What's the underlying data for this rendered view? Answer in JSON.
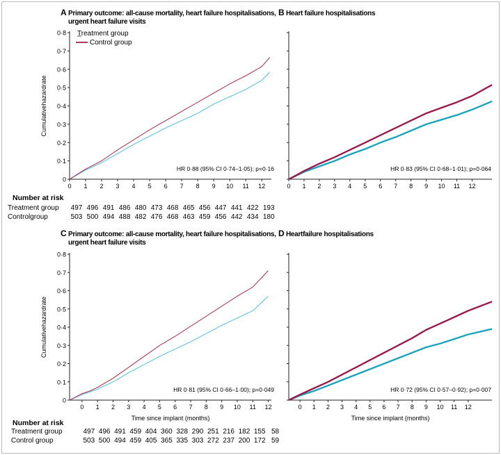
{
  "colors": {
    "treatment": "#5cc3df",
    "control": "#a83a58",
    "treatment_dark": "#1aa3bd",
    "control_dark": "#9a1a4c",
    "border": "#bcbcbc",
    "axis": "#222222"
  },
  "number_at_risk": [
    {
      "title": "Number at risk",
      "rows": [
        {
          "label": "Treatment group",
          "values": [
            "497",
            "496",
            "491",
            "486",
            "480",
            "473",
            "468",
            "465",
            "456",
            "447",
            "441",
            "422",
            "193"
          ]
        },
        {
          "label": "Controlgroup",
          "values": [
            "503",
            "500",
            "494",
            "488",
            "482",
            "476",
            "468",
            "463",
            "459",
            "456",
            "442",
            "434",
            "180"
          ]
        }
      ]
    },
    {
      "title": "Number at risk",
      "rows": [
        {
          "label": "Treatment group",
          "values": [
            "497",
            "496",
            "491",
            "459",
            "404",
            "360",
            "328",
            "290",
            "251",
            "216",
            "182",
            "155",
            "58"
          ]
        },
        {
          "label": "Control group",
          "values": [
            "503",
            "500",
            "494",
            "459",
            "405",
            "365",
            "335",
            "303",
            "272",
            "237",
            "200",
            "172",
            "59"
          ]
        }
      ]
    }
  ],
  "chart_data": [
    {
      "type": "line",
      "panel": "A",
      "title": "Primary outcome: all-cause mortality, heart failure hospitalisations, urgent heart failure visits",
      "xlabel": "",
      "ylabel": "Cumulativehazardrate",
      "xlim": [
        0,
        12.6
      ],
      "ylim": [
        0,
        0.8
      ],
      "xticks": [
        "0",
        "1",
        "2",
        "3",
        "4",
        "5",
        "6",
        "7",
        "8",
        "9",
        "10",
        "11",
        "12"
      ],
      "yticks": [
        "0",
        "0·1",
        "0·2",
        "0·3",
        "0·4",
        "0·5",
        "0·6",
        "0·7",
        "0·8"
      ],
      "annotation": "HR 0·88 (95% CI 0·74–1·05); p=0·16",
      "legend": [
        "Treatment group",
        "Control group"
      ],
      "grid": false,
      "series": [
        {
          "name": "Treatment group",
          "x": [
            0,
            0.5,
            1,
            2,
            3,
            4,
            5,
            6,
            7,
            8,
            9,
            10,
            11,
            12,
            12.5
          ],
          "y": [
            0,
            0.025,
            0.05,
            0.09,
            0.14,
            0.19,
            0.235,
            0.28,
            0.32,
            0.36,
            0.41,
            0.45,
            0.49,
            0.54,
            0.585
          ]
        },
        {
          "name": "Control group",
          "x": [
            0,
            0.5,
            1,
            2,
            3,
            4,
            5,
            6,
            7,
            8,
            9,
            10,
            11,
            12,
            12.5
          ],
          "y": [
            0,
            0.028,
            0.055,
            0.1,
            0.16,
            0.215,
            0.27,
            0.32,
            0.37,
            0.42,
            0.47,
            0.52,
            0.565,
            0.615,
            0.665
          ]
        }
      ]
    },
    {
      "type": "line",
      "panel": "B",
      "title": "Heart failure hospitalisations",
      "xlabel": "",
      "ylabel": "",
      "xlim": [
        0,
        13.3
      ],
      "ylim": [
        0,
        0.8
      ],
      "xticks": [
        "0",
        "1",
        "2",
        "3",
        "4",
        "5",
        "6",
        "7",
        "8",
        "9",
        "10",
        "11",
        "12"
      ],
      "annotation": "HR 0·83 (95% CI 0·68–1·01); p=0·064",
      "grid": false,
      "series": [
        {
          "name": "Treatment group",
          "x": [
            0,
            0.5,
            1,
            2,
            3,
            4,
            5,
            6,
            7,
            8,
            9,
            10,
            11,
            12,
            13.3
          ],
          "y": [
            0,
            0.02,
            0.04,
            0.07,
            0.1,
            0.135,
            0.165,
            0.2,
            0.23,
            0.265,
            0.3,
            0.325,
            0.35,
            0.38,
            0.425
          ]
        },
        {
          "name": "Control group",
          "x": [
            0,
            0.5,
            1,
            2,
            3,
            4,
            5,
            6,
            7,
            8,
            9,
            10,
            11,
            12,
            13.3
          ],
          "y": [
            0,
            0.022,
            0.045,
            0.085,
            0.12,
            0.16,
            0.2,
            0.24,
            0.28,
            0.32,
            0.36,
            0.39,
            0.42,
            0.455,
            0.515
          ]
        }
      ]
    },
    {
      "type": "line",
      "panel": "C",
      "title": "Primary outcome: all-cause mortality, heart failure hospitalisations, urgent heart failure visits",
      "xlabel": "Time since implant (months)",
      "ylabel": "Cumulativehazardrate",
      "xlim": [
        -0.8,
        12.2
      ],
      "ylim": [
        0,
        0.8
      ],
      "xticks": [
        "0",
        "1",
        "2",
        "3",
        "4",
        "5",
        "6",
        "7",
        "8",
        "9",
        "10",
        "11",
        "12"
      ],
      "yticks": [
        "0",
        "0·1",
        "0·2",
        "0·3",
        "0·4",
        "0·5",
        "0·6",
        "0·7",
        "0·8"
      ],
      "annotation": "HR 0·81 (95% CI 0·66–1·00); p=0·049",
      "grid": false,
      "series": [
        {
          "name": "Treatment group",
          "x": [
            -0.8,
            0,
            0.5,
            1,
            2,
            3,
            4,
            5,
            6,
            7,
            8,
            9,
            10,
            11,
            12
          ],
          "y": [
            0,
            0.03,
            0.045,
            0.06,
            0.1,
            0.15,
            0.195,
            0.24,
            0.28,
            0.32,
            0.365,
            0.41,
            0.45,
            0.49,
            0.57
          ]
        },
        {
          "name": "Control group",
          "x": [
            -0.8,
            0,
            0.5,
            1,
            2,
            3,
            4,
            5,
            6,
            7,
            8,
            9,
            10,
            11,
            12
          ],
          "y": [
            0,
            0.035,
            0.05,
            0.07,
            0.12,
            0.18,
            0.24,
            0.3,
            0.35,
            0.405,
            0.46,
            0.515,
            0.57,
            0.62,
            0.71
          ]
        }
      ]
    },
    {
      "type": "line",
      "panel": "D",
      "title": "Heartfailure hospitalisations",
      "xlabel": "Time since implant (months)",
      "ylabel": "",
      "xlim": [
        -0.8,
        13.7
      ],
      "ylim": [
        0,
        0.8
      ],
      "xticks": [
        "0",
        "1",
        "2",
        "3",
        "4",
        "5",
        "6",
        "7",
        "8",
        "9",
        "10",
        "11",
        "12"
      ],
      "annotation": "HR 0·72 (95% CI 0·57–0·92); p=0·007",
      "grid": false,
      "series": [
        {
          "name": "Treatment group",
          "x": [
            -0.8,
            0,
            1,
            2,
            3,
            4,
            5,
            6,
            7,
            8,
            9,
            10,
            11,
            12,
            13.7
          ],
          "y": [
            0,
            0.025,
            0.05,
            0.08,
            0.11,
            0.14,
            0.17,
            0.2,
            0.23,
            0.26,
            0.29,
            0.31,
            0.335,
            0.36,
            0.39
          ]
        },
        {
          "name": "Control group",
          "x": [
            -0.8,
            0,
            1,
            2,
            3,
            4,
            5,
            6,
            7,
            8,
            9,
            10,
            11,
            12,
            13.7
          ],
          "y": [
            0,
            0.03,
            0.065,
            0.1,
            0.14,
            0.18,
            0.22,
            0.26,
            0.3,
            0.34,
            0.385,
            0.42,
            0.455,
            0.49,
            0.54
          ]
        }
      ]
    }
  ]
}
